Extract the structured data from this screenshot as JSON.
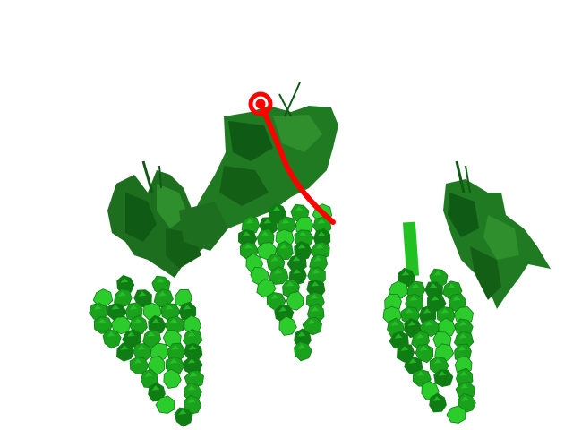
{
  "scene": {
    "background": "#ffffff",
    "colors": {
      "leaf_dark": "#0f5a14",
      "leaf_mid": "#1f7a22",
      "leaf_light": "#2e8f2c",
      "grape_dark": "#0f7d14",
      "grape_mid": "#1aa21d",
      "grape_light": "#2ccc2c",
      "stem": "#22c022",
      "marker": "#ff0000"
    },
    "objects": [
      {
        "name": "grape-bunch-left",
        "type": "grape-cluster"
      },
      {
        "name": "grape-bunch-center",
        "type": "grape-cluster"
      },
      {
        "name": "grape-bunch-right",
        "type": "grape-cluster"
      },
      {
        "name": "vine-leaf-left",
        "type": "leaf"
      },
      {
        "name": "vine-leaf-center",
        "type": "leaf"
      },
      {
        "name": "vine-leaf-right",
        "type": "leaf"
      },
      {
        "name": "red-path-trace",
        "type": "annotation-path"
      },
      {
        "name": "red-target-circle",
        "type": "annotation-marker"
      }
    ]
  }
}
